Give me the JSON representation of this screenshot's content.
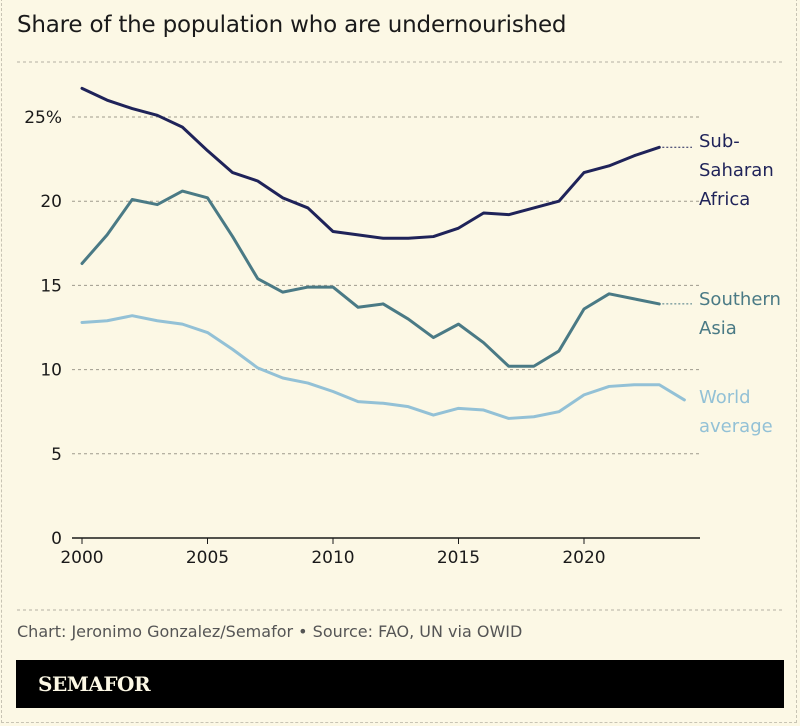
{
  "title": "Share of the population who are undernourished",
  "source": "Chart: Jeronimo Gonzalez/Semafor • Source: FAO, UN via OWID",
  "logo": "SEMAFOR",
  "chart_data": {
    "type": "line",
    "title": "Share of the population who are undernourished",
    "xlim": [
      2000,
      2024
    ],
    "ylim": [
      0,
      27
    ],
    "x_ticks": [
      "2000",
      "2005",
      "2010",
      "2015",
      "2020"
    ],
    "y_ticks": [
      "0",
      "5",
      "10",
      "15",
      "20",
      "25%"
    ],
    "grid": true,
    "series": [
      {
        "name": "Sub-Saharan Africa",
        "label_lines": [
          "Sub-",
          "Saharan",
          "Africa"
        ],
        "color": "#1f2359",
        "x": [
          2000,
          2001,
          2002,
          2003,
          2004,
          2005,
          2006,
          2007,
          2008,
          2009,
          2010,
          2011,
          2012,
          2013,
          2014,
          2015,
          2016,
          2017,
          2018,
          2019,
          2020,
          2021,
          2022,
          2023
        ],
        "values": [
          26.7,
          26.0,
          25.5,
          25.1,
          24.4,
          23.0,
          21.7,
          21.2,
          20.2,
          19.6,
          18.2,
          18.0,
          17.8,
          17.8,
          17.9,
          18.4,
          19.3,
          19.2,
          19.6,
          20.0,
          21.7,
          22.1,
          22.7,
          23.2
        ]
      },
      {
        "name": "Southern Asia",
        "label_lines": [
          "Southern",
          "Asia"
        ],
        "color": "#4a7a85",
        "x": [
          2000,
          2001,
          2002,
          2003,
          2004,
          2005,
          2006,
          2007,
          2008,
          2009,
          2010,
          2011,
          2012,
          2013,
          2014,
          2015,
          2016,
          2017,
          2018,
          2019,
          2020,
          2021,
          2022,
          2023
        ],
        "values": [
          16.3,
          18.0,
          20.1,
          19.8,
          20.6,
          20.2,
          17.9,
          15.4,
          14.6,
          14.9,
          14.9,
          13.7,
          13.9,
          13.0,
          11.9,
          12.7,
          11.6,
          10.2,
          10.2,
          11.1,
          13.6,
          14.5,
          14.2,
          13.9
        ]
      },
      {
        "name": "World average",
        "label_lines": [
          "World",
          "average"
        ],
        "color": "#93c1d6",
        "x": [
          2000,
          2001,
          2002,
          2003,
          2004,
          2005,
          2006,
          2007,
          2008,
          2009,
          2010,
          2011,
          2012,
          2013,
          2014,
          2015,
          2016,
          2017,
          2018,
          2019,
          2020,
          2021,
          2022,
          2023,
          2024
        ],
        "values": [
          12.8,
          12.9,
          13.2,
          12.9,
          12.7,
          12.2,
          11.2,
          10.1,
          9.5,
          9.2,
          8.7,
          8.1,
          8.0,
          7.8,
          7.3,
          7.7,
          7.6,
          7.1,
          7.2,
          7.5,
          8.5,
          9.0,
          9.1,
          9.1,
          8.2
        ]
      }
    ]
  }
}
